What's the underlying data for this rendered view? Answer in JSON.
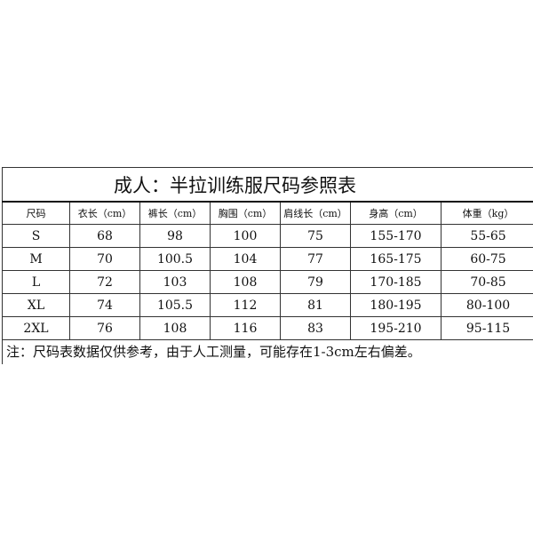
{
  "title": "成人：半拉训练服尺码参照表",
  "headers": [
    "尺码",
    "衣长（cm）",
    "裤长（cm）",
    "胸围（cm）",
    "肩线长（cm）",
    "身高（cm）",
    "体重（kg）"
  ],
  "rows": [
    [
      "S",
      "68",
      "98",
      "100",
      "75",
      "155-170",
      "55-65"
    ],
    [
      "M",
      "70",
      "100.5",
      "104",
      "77",
      "165-175",
      "60-75"
    ],
    [
      "L",
      "72",
      "103",
      "108",
      "79",
      "170-185",
      "70-85"
    ],
    [
      "XL",
      "74",
      "105.5",
      "112",
      "81",
      "180-195",
      "80-100"
    ],
    [
      "2XL",
      "76",
      "108",
      "116",
      "83",
      "195-210",
      "95-115"
    ]
  ],
  "note": "注：尺码表数据仅供参考，由于人工测量，可能存在1-3cm左右偏差。"
}
